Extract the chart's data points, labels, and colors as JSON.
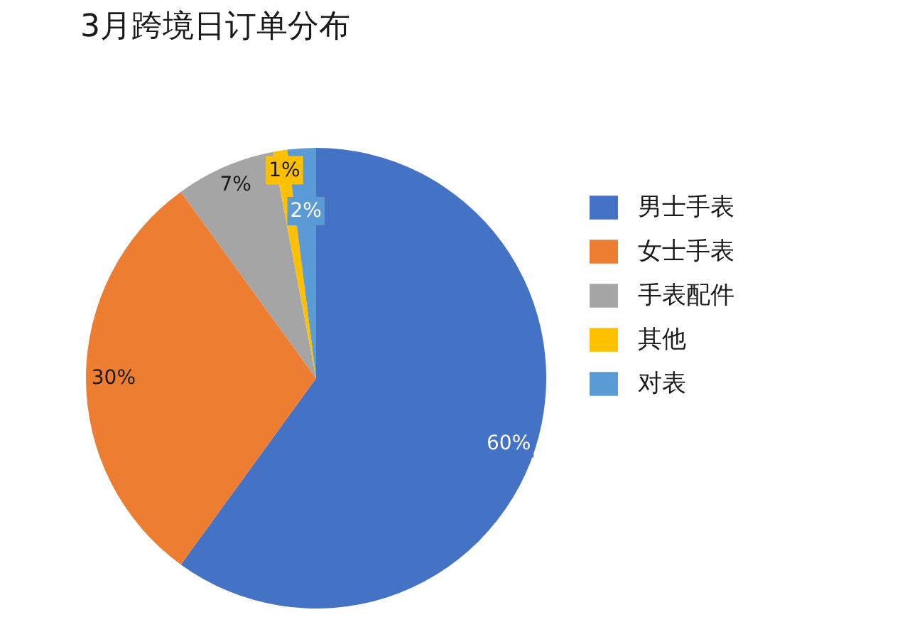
{
  "chart_data": {
    "type": "pie",
    "title": "3月跨境日订单分布",
    "categories": [
      "男士手表",
      "女士手表",
      "手表配件",
      "其他",
      "对表"
    ],
    "values": [
      60,
      30,
      7,
      1,
      2
    ],
    "colors": [
      "#4472c4",
      "#ed7d31",
      "#a5a5a5",
      "#ffc000",
      "#5b9bd5"
    ],
    "value_labels": [
      "60%",
      "30%",
      "7%",
      "1%",
      "2%"
    ],
    "legend": "right"
  }
}
